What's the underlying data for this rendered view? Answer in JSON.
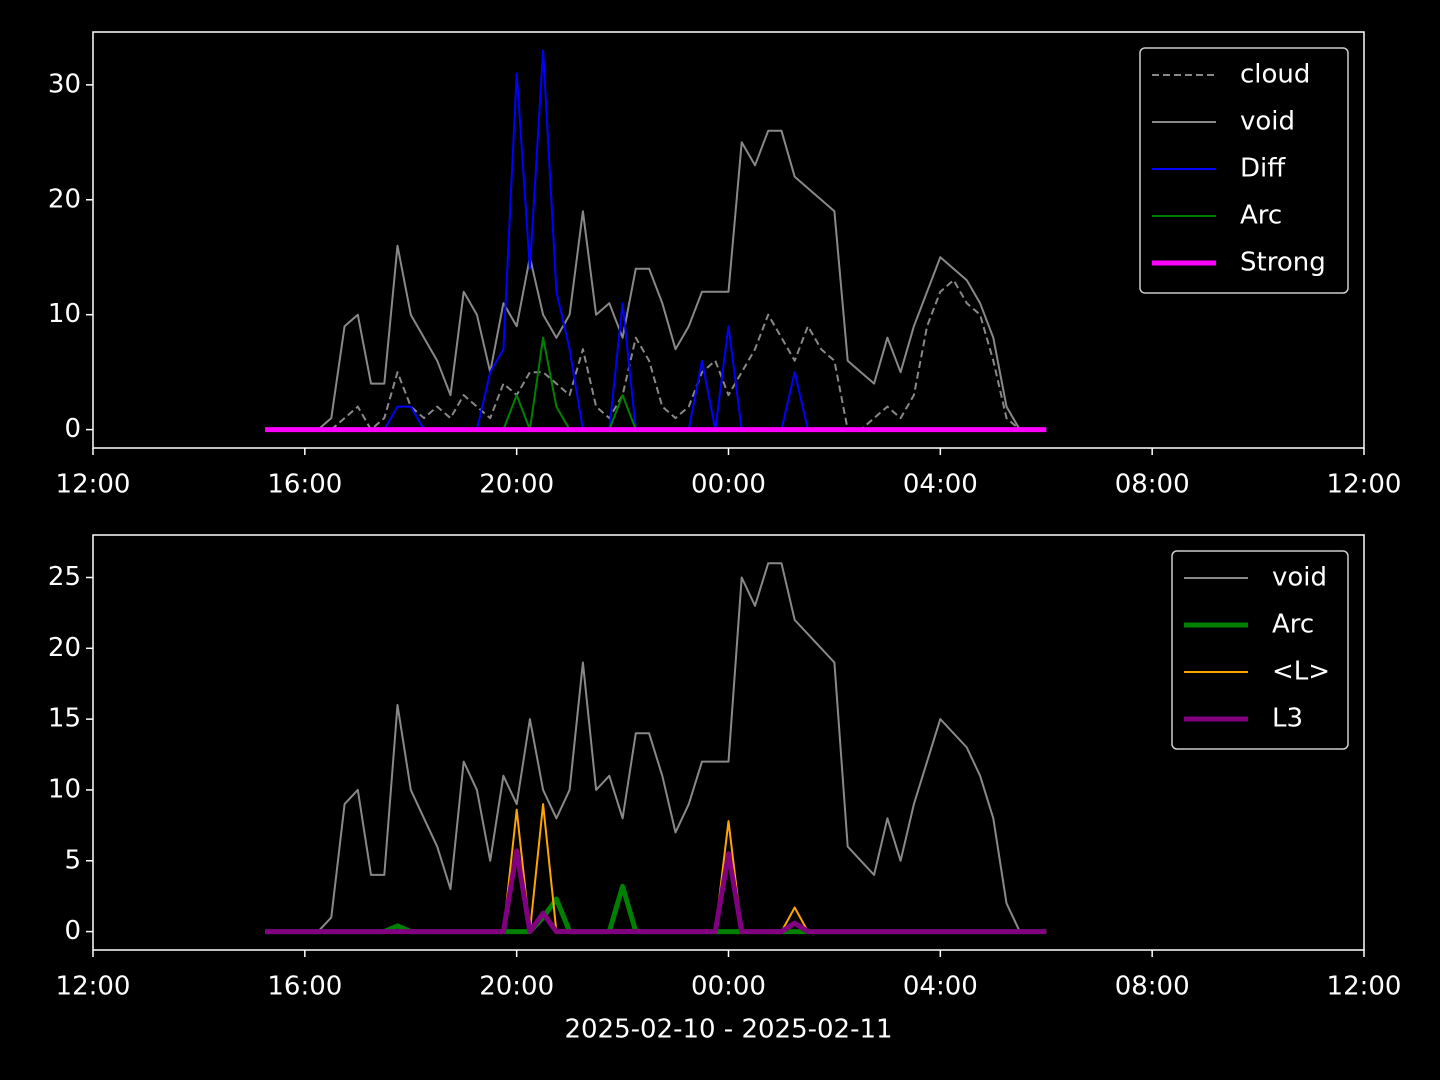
{
  "chart_data": [
    {
      "type": "line",
      "x": [
        3.25,
        3.5,
        3.75,
        4.0,
        4.25,
        4.5,
        4.75,
        5.0,
        5.25,
        5.5,
        5.75,
        6.0,
        6.25,
        6.5,
        6.75,
        7.0,
        7.25,
        7.5,
        7.75,
        8.0,
        8.25,
        8.5,
        8.75,
        9.0,
        9.25,
        9.5,
        9.75,
        10.0,
        10.25,
        10.5,
        10.75,
        11.0,
        11.25,
        11.5,
        11.75,
        12.0,
        12.25,
        12.5,
        12.75,
        13.0,
        13.25,
        13.5,
        13.75,
        14.0,
        14.25,
        14.5,
        14.75,
        15.0,
        15.25,
        15.5,
        15.75,
        16.0,
        16.25,
        16.5,
        16.75,
        17.0,
        17.25,
        17.5,
        17.75,
        18.0
      ],
      "series": [
        {
          "name": "cloud",
          "color": "#888888",
          "dash": "dashed",
          "width": 2,
          "values": [
            0,
            0,
            0,
            0,
            0,
            0,
            1,
            2,
            0,
            1,
            5,
            2,
            1,
            2,
            1,
            3,
            2,
            1,
            4,
            3,
            5,
            5,
            4,
            3,
            7,
            2,
            1,
            3,
            8,
            6,
            2,
            1,
            2,
            5,
            6,
            3,
            5,
            7,
            10,
            8,
            6,
            9,
            7,
            6,
            0,
            0,
            1,
            2,
            1,
            3,
            9,
            12,
            13,
            11,
            10,
            6,
            1,
            0,
            0,
            0
          ]
        },
        {
          "name": "void",
          "color": "#888888",
          "width": 2,
          "values": [
            0,
            0,
            0,
            0,
            0,
            1,
            9,
            10,
            4,
            4,
            16,
            10,
            8,
            6,
            3,
            12,
            10,
            5,
            11,
            9,
            15,
            10,
            8,
            10,
            19,
            10,
            11,
            8,
            14,
            14,
            11,
            7,
            9,
            12,
            12,
            12,
            25,
            23,
            26,
            26,
            22,
            21,
            20,
            19,
            6,
            5,
            4,
            8,
            5,
            9,
            12,
            15,
            14,
            13,
            11,
            8,
            2,
            0,
            0,
            0
          ]
        },
        {
          "name": "Diff",
          "color": "#0000ff",
          "width": 2,
          "values": [
            0,
            0,
            0,
            0,
            0,
            0,
            0,
            0,
            0,
            0,
            2,
            2,
            0,
            0,
            0,
            0,
            0,
            5,
            7,
            31,
            14,
            33,
            12,
            7,
            0,
            0,
            0,
            11,
            0,
            0,
            0,
            0,
            0,
            6,
            0,
            9,
            0,
            0,
            0,
            0,
            5,
            0,
            0,
            0,
            0,
            0,
            0,
            0,
            0,
            0,
            0,
            0,
            0,
            0,
            0,
            0,
            0,
            0,
            0,
            0
          ]
        },
        {
          "name": "Arc",
          "color": "#008000",
          "width": 2,
          "values": [
            0,
            0,
            0,
            0,
            0,
            0,
            0,
            0,
            0,
            0,
            0,
            0,
            0,
            0,
            0,
            0,
            0,
            0,
            0,
            3,
            0,
            8,
            2,
            0,
            0,
            0,
            0,
            3,
            0,
            0,
            0,
            0,
            0,
            0,
            0,
            0,
            0,
            0,
            0,
            0,
            0,
            0,
            0,
            0,
            0,
            0,
            0,
            0,
            0,
            0,
            0,
            0,
            0,
            0,
            0,
            0,
            0,
            0,
            0,
            0
          ]
        },
        {
          "name": "Strong",
          "color": "#ff00ff",
          "width": 5,
          "values": [
            0,
            0,
            0,
            0,
            0,
            0,
            0,
            0,
            0,
            0,
            0,
            0,
            0,
            0,
            0,
            0,
            0,
            0,
            0,
            0,
            0,
            0,
            0,
            0,
            0,
            0,
            0,
            0,
            0,
            0,
            0,
            0,
            0,
            0,
            0,
            0,
            0,
            0,
            0,
            0,
            0,
            0,
            0,
            0,
            0,
            0,
            0,
            0,
            0,
            0,
            0,
            0,
            0,
            0,
            0,
            0,
            0,
            0,
            0,
            0
          ]
        }
      ],
      "xlim": [
        0,
        24
      ],
      "xticks": [
        {
          "value": 0,
          "label": "12:00"
        },
        {
          "value": 4,
          "label": "16:00"
        },
        {
          "value": 8,
          "label": "20:00"
        },
        {
          "value": 12,
          "label": "00:00"
        },
        {
          "value": 16,
          "label": "04:00"
        },
        {
          "value": 20,
          "label": "08:00"
        },
        {
          "value": 24,
          "label": "12:00"
        }
      ],
      "ylim": [
        -1.6,
        34.6
      ],
      "yticks": [
        0,
        10,
        20,
        30
      ],
      "legend": "upper right"
    },
    {
      "type": "line",
      "x": [
        3.25,
        3.5,
        3.75,
        4.0,
        4.25,
        4.5,
        4.75,
        5.0,
        5.25,
        5.5,
        5.75,
        6.0,
        6.25,
        6.5,
        6.75,
        7.0,
        7.25,
        7.5,
        7.75,
        8.0,
        8.25,
        8.5,
        8.75,
        9.0,
        9.25,
        9.5,
        9.75,
        10.0,
        10.25,
        10.5,
        10.75,
        11.0,
        11.25,
        11.5,
        11.75,
        12.0,
        12.25,
        12.5,
        12.75,
        13.0,
        13.25,
        13.5,
        13.75,
        14.0,
        14.25,
        14.5,
        14.75,
        15.0,
        15.25,
        15.5,
        15.75,
        16.0,
        16.25,
        16.5,
        16.75,
        17.0,
        17.25,
        17.5,
        17.75,
        18.0
      ],
      "series": [
        {
          "name": "void",
          "color": "#888888",
          "width": 2,
          "values": [
            0,
            0,
            0,
            0,
            0,
            1,
            9,
            10,
            4,
            4,
            16,
            10,
            8,
            6,
            3,
            12,
            10,
            5,
            11,
            9,
            15,
            10,
            8,
            10,
            19,
            10,
            11,
            8,
            14,
            14,
            11,
            7,
            9,
            12,
            12,
            12,
            25,
            23,
            26,
            26,
            22,
            21,
            20,
            19,
            6,
            5,
            4,
            8,
            5,
            9,
            12,
            15,
            14,
            13,
            11,
            8,
            2,
            0,
            0,
            0
          ]
        },
        {
          "name": "Arc",
          "color": "#008000",
          "width": 5,
          "values": [
            0,
            0,
            0,
            0,
            0,
            0,
            0,
            0,
            0,
            0,
            0.4,
            0,
            0,
            0,
            0,
            0,
            0,
            0,
            0,
            0,
            0,
            1,
            2.3,
            0,
            0,
            0,
            0,
            3.2,
            0,
            0,
            0,
            0,
            0,
            0,
            0,
            0,
            0,
            0,
            0,
            0,
            0,
            0,
            0,
            0,
            0,
            0,
            0,
            0,
            0,
            0,
            0,
            0,
            0,
            0,
            0,
            0,
            0,
            0,
            0,
            0
          ]
        },
        {
          "name": "<L>",
          "color": "#ffa500",
          "width": 2,
          "values": [
            0,
            0,
            0,
            0,
            0,
            0,
            0,
            0,
            0,
            0,
            0,
            0,
            0,
            0,
            0,
            0,
            0,
            0,
            0,
            8.6,
            0,
            9,
            0,
            0,
            0,
            0,
            0,
            0,
            0,
            0,
            0,
            0,
            0,
            0,
            0,
            7.8,
            0,
            0,
            0,
            0,
            1.7,
            0,
            0,
            0,
            0,
            0,
            0,
            0,
            0,
            0,
            0,
            0,
            0,
            0,
            0,
            0,
            0,
            0,
            0,
            0
          ]
        },
        {
          "name": "L3",
          "color": "#800080",
          "width": 5,
          "values": [
            0,
            0,
            0,
            0,
            0,
            0,
            0,
            0,
            0,
            0,
            0,
            0,
            0,
            0,
            0,
            0,
            0,
            0,
            0,
            5.7,
            0,
            1.3,
            0,
            0,
            0,
            0,
            0,
            0,
            0,
            0,
            0,
            0,
            0,
            0,
            0,
            5.5,
            0,
            0,
            0,
            0,
            0.6,
            0,
            0,
            0,
            0,
            0,
            0,
            0,
            0,
            0,
            0,
            0,
            0,
            0,
            0,
            0,
            0,
            0,
            0,
            0
          ]
        }
      ],
      "xlim": [
        0,
        24
      ],
      "xticks": [
        {
          "value": 0,
          "label": "12:00"
        },
        {
          "value": 4,
          "label": "16:00"
        },
        {
          "value": 8,
          "label": "20:00"
        },
        {
          "value": 12,
          "label": "00:00"
        },
        {
          "value": 16,
          "label": "04:00"
        },
        {
          "value": 20,
          "label": "08:00"
        },
        {
          "value": 24,
          "label": "12:00"
        }
      ],
      "ylim": [
        -1.3,
        28.0
      ],
      "yticks": [
        0,
        5,
        10,
        15,
        20,
        25
      ],
      "legend": "upper right",
      "xlabel": "2025-02-10 - 2025-02-11"
    }
  ]
}
